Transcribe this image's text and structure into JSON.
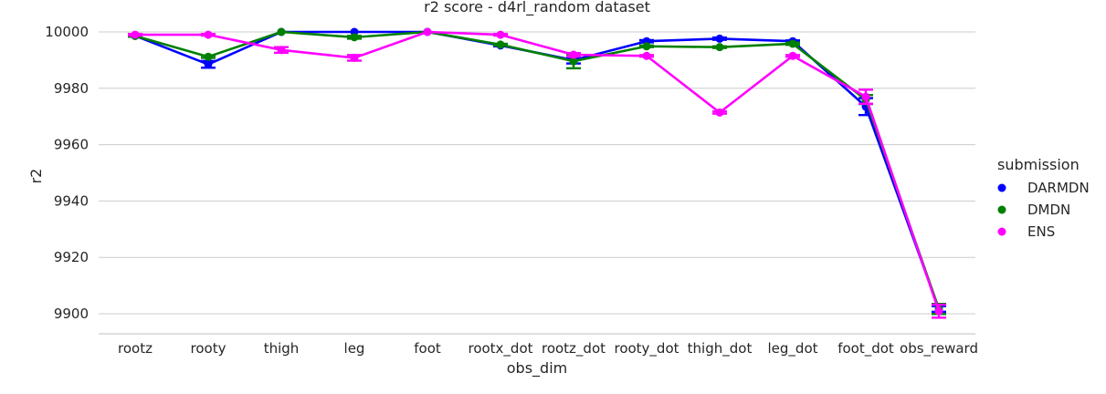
{
  "chart_data": {
    "type": "line",
    "title": "r2 score - d4rl_random dataset",
    "xlabel": "obs_dim",
    "ylabel": "r2",
    "categories": [
      "rootz",
      "rooty",
      "thigh",
      "leg",
      "foot",
      "rootx_dot",
      "rootz_dot",
      "rooty_dot",
      "thigh_dot",
      "leg_dot",
      "foot_dot",
      "obs_reward"
    ],
    "yticks": [
      9900,
      9920,
      9940,
      9960,
      9980,
      10000
    ],
    "ylim": [
      9893,
      10003
    ],
    "grid": "horizontal",
    "legend": {
      "title": "submission",
      "placement": "right"
    },
    "series": [
      {
        "name": "DARMDN",
        "color": "#0000ff",
        "values": [
          9998.6,
          9988.5,
          10000.0,
          10000.0,
          10000.0,
          9995.2,
          9990.0,
          9996.7,
          9997.6,
          9996.7,
          9973.5,
          9901.7
        ],
        "errors": [
          0.3,
          1.2,
          0.0,
          0.0,
          0.0,
          0.3,
          1.2,
          0.4,
          0.4,
          0.3,
          3.0,
          1.0
        ]
      },
      {
        "name": "DMDN",
        "color": "#008000",
        "values": [
          9998.6,
          9991.2,
          10000.0,
          9998.1,
          10000.0,
          9995.5,
          9989.6,
          9994.9,
          9994.6,
          9995.8,
          9976.0,
          9901.7
        ],
        "errors": [
          0.3,
          0.4,
          0.0,
          0.5,
          0.0,
          0.3,
          2.5,
          0.3,
          0.3,
          0.4,
          1.6,
          1.8
        ]
      },
      {
        "name": "ENS",
        "color": "#ff00ff",
        "values": [
          9999.0,
          9999.0,
          9993.6,
          9990.8,
          10000.0,
          9999.0,
          9991.9,
          9991.5,
          9971.4,
          9991.5,
          9977.0,
          9900.9
        ],
        "errors": [
          0.3,
          0.3,
          1.0,
          1.0,
          0.0,
          0.3,
          0.6,
          0.3,
          0.4,
          0.3,
          2.5,
          2.3
        ]
      }
    ]
  }
}
